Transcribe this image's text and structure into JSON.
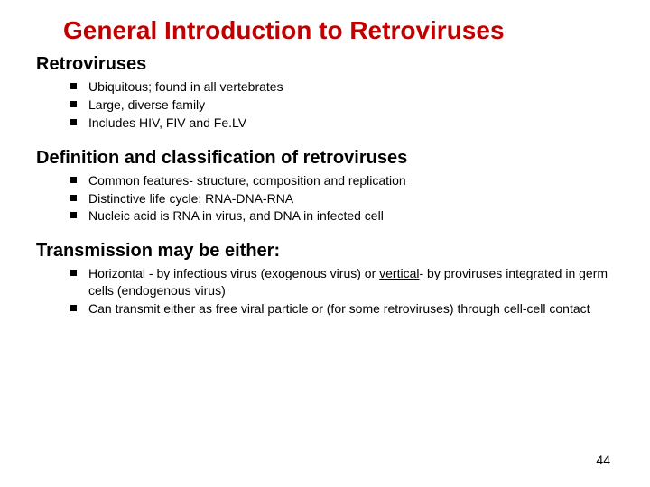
{
  "colors": {
    "title": "#c00000",
    "text": "#000000",
    "background": "#ffffff",
    "bullet": "#000000"
  },
  "typography": {
    "title_fontsize": 28,
    "heading_fontsize": 20,
    "body_fontsize": 14,
    "font_family": "Arial"
  },
  "title": "General Introduction to Retroviruses",
  "sections": [
    {
      "heading": "Retroviruses",
      "bullets": [
        "Ubiquitous; found in all vertebrates",
        "Large, diverse family",
        "Includes HIV, FIV and Fe.LV"
      ]
    },
    {
      "heading": "Definition and classification of retroviruses",
      "bullets": [
        "Common features- structure, composition and replication",
        "Distinctive life cycle: RNA-DNA-RNA",
        "Nucleic acid is RNA in virus, and DNA in infected cell"
      ]
    },
    {
      "heading": "Transmission may be either:",
      "bullets_html": [
        "Horizontal - by infectious virus (exogenous virus) or <span class=\"underline\">vertical</span>- by proviruses integrated in germ cells (endogenous virus)",
        "Can transmit either as free viral particle or (for some retroviruses) through cell-cell contact"
      ]
    }
  ],
  "page_number": "44"
}
